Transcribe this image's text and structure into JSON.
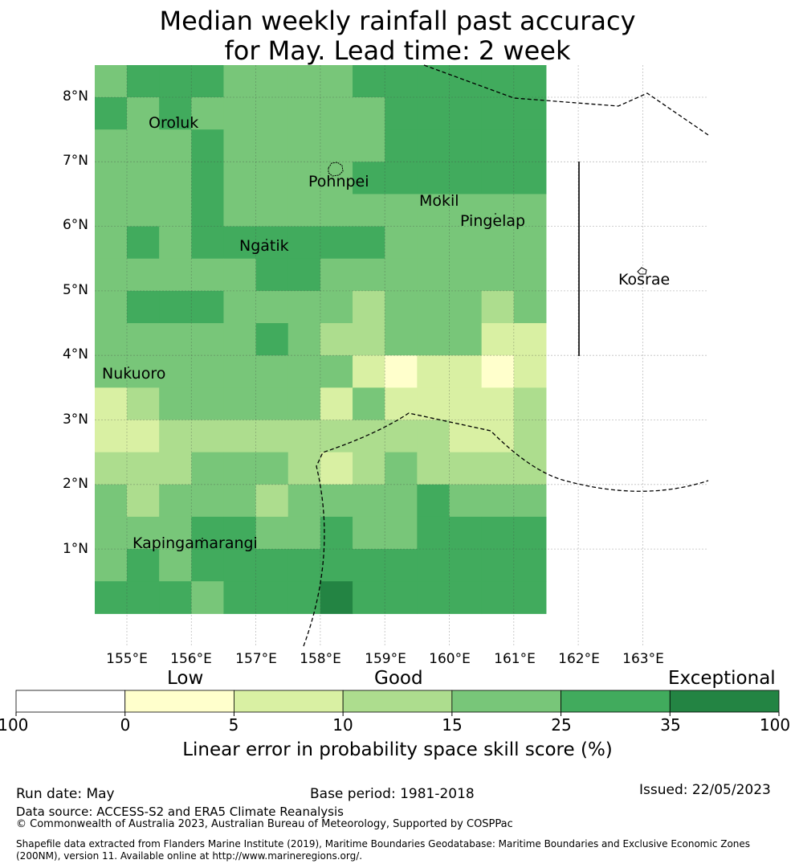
{
  "title": {
    "line1": "Median weekly rainfall past accuracy",
    "line2": "for May. Lead time: 2 week"
  },
  "map": {
    "x_ticks": [
      "155°E",
      "156°E",
      "157°E",
      "158°E",
      "159°E",
      "160°E",
      "161°E",
      "162°E",
      "163°E"
    ],
    "y_ticks": [
      "8°N",
      "7°N",
      "6°N",
      "5°N",
      "4°N",
      "3°N",
      "2°N",
      "1°N"
    ],
    "places": {
      "oroluk": "Oroluk",
      "pohnpei": "Pohnpei",
      "mokil": "Mokil",
      "pingelap": "Pingelap",
      "ngatik": "Ngatik",
      "kosrae": "Kosrae",
      "nukuoro": "Nukuoro",
      "kapingamarangi": "Kapingamarangi"
    },
    "colors": {
      "c0": "#ffffff",
      "c1": "#ffffcc",
      "c2": "#d9f0a3",
      "c3": "#addd8e",
      "c4": "#78c679",
      "c5": "#41ab5d",
      "c6": "#238443"
    },
    "grid_classes": [
      [
        4,
        5,
        5,
        5,
        4,
        4,
        4,
        4,
        5,
        5,
        5,
        5,
        5,
        5
      ],
      [
        5,
        4,
        5,
        4,
        4,
        4,
        4,
        4,
        4,
        5,
        5,
        5,
        5,
        5
      ],
      [
        4,
        4,
        4,
        5,
        4,
        4,
        4,
        4,
        4,
        5,
        5,
        5,
        5,
        5
      ],
      [
        4,
        4,
        4,
        5,
        4,
        4,
        4,
        4,
        5,
        5,
        5,
        5,
        5,
        5
      ],
      [
        4,
        4,
        4,
        5,
        4,
        4,
        4,
        4,
        4,
        4,
        4,
        4,
        4,
        4
      ],
      [
        4,
        5,
        4,
        5,
        5,
        5,
        5,
        5,
        5,
        4,
        4,
        4,
        4,
        4
      ],
      [
        4,
        4,
        4,
        4,
        4,
        5,
        5,
        4,
        4,
        4,
        4,
        4,
        4,
        4
      ],
      [
        4,
        5,
        5,
        5,
        4,
        4,
        4,
        4,
        3,
        4,
        4,
        4,
        3,
        4
      ],
      [
        4,
        4,
        4,
        4,
        4,
        5,
        4,
        3,
        3,
        4,
        4,
        4,
        2,
        2
      ],
      [
        4,
        4,
        4,
        4,
        4,
        4,
        4,
        4,
        2,
        1,
        2,
        2,
        1,
        2
      ],
      [
        2,
        3,
        4,
        4,
        4,
        4,
        4,
        2,
        4,
        2,
        2,
        2,
        2,
        3
      ],
      [
        2,
        2,
        3,
        3,
        3,
        3,
        3,
        3,
        3,
        3,
        3,
        2,
        2,
        3
      ],
      [
        3,
        3,
        3,
        4,
        4,
        4,
        3,
        2,
        3,
        4,
        3,
        3,
        3,
        3
      ],
      [
        4,
        3,
        4,
        4,
        4,
        3,
        4,
        4,
        4,
        4,
        5,
        4,
        4,
        4
      ],
      [
        4,
        4,
        4,
        5,
        5,
        4,
        4,
        5,
        4,
        4,
        5,
        5,
        5,
        5
      ],
      [
        4,
        5,
        4,
        5,
        5,
        5,
        5,
        5,
        5,
        5,
        5,
        5,
        5,
        5
      ],
      [
        5,
        5,
        5,
        4,
        5,
        5,
        5,
        6,
        5,
        5,
        5,
        5,
        5,
        5
      ]
    ]
  },
  "colorbar": {
    "categories": {
      "low": "Low",
      "good": "Good",
      "exceptional": "Exceptional"
    },
    "ticks": [
      "-100",
      "0",
      "5",
      "10",
      "15",
      "25",
      "35",
      "100"
    ],
    "label": "Linear error in probability space skill score (%)"
  },
  "footer": {
    "run_date": "Run date: May",
    "base_period": "Base period: 1981-2018",
    "issued": "Issued: 22/05/2023",
    "data_source": "Data source: ACCESS-S2 and ERA5 Climate Reanalysis",
    "copyright": "© Commonwealth of Australia 2023, Australian Bureau of Meteorology, Supported by COSPPac",
    "shapefile_line1": "Shapefile data extracted from Flanders Marine Institute (2019), Maritime Boundaries Geodatabase: Maritime Boundaries and Exclusive Economic Zones",
    "shapefile_line2": "(200NM), version 11. Available online at http://www.marineregions.org/."
  }
}
